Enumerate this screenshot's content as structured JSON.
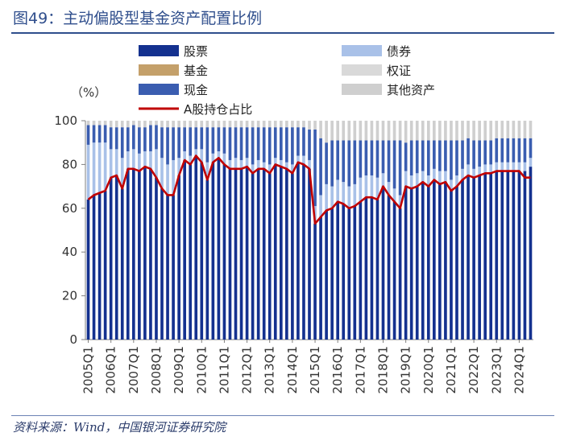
{
  "figure": {
    "title": "图49：主动偏股型基金资产配置比例",
    "source": "资料来源：Wind，中国银河证券研究院"
  },
  "chart_data": {
    "type": "bar",
    "stacked": true,
    "title": "主动偏股型基金资产配置比例",
    "ylabel": "（%）",
    "ylim": [
      0,
      100
    ],
    "yticks": [
      0,
      20,
      40,
      60,
      80,
      100
    ],
    "categories": [
      "2005Q1",
      "2005Q2",
      "2005Q3",
      "2005Q4",
      "2006Q1",
      "2006Q2",
      "2006Q3",
      "2006Q4",
      "2007Q1",
      "2007Q2",
      "2007Q3",
      "2007Q4",
      "2008Q1",
      "2008Q2",
      "2008Q3",
      "2008Q4",
      "2009Q1",
      "2009Q2",
      "2009Q3",
      "2009Q4",
      "2010Q1",
      "2010Q2",
      "2010Q3",
      "2010Q4",
      "2011Q1",
      "2011Q2",
      "2011Q3",
      "2011Q4",
      "2012Q1",
      "2012Q2",
      "2012Q3",
      "2012Q4",
      "2013Q1",
      "2013Q2",
      "2013Q3",
      "2013Q4",
      "2014Q1",
      "2014Q2",
      "2014Q3",
      "2014Q4",
      "2015Q1",
      "2015Q2",
      "2015Q3",
      "2015Q4",
      "2016Q1",
      "2016Q2",
      "2016Q3",
      "2016Q4",
      "2017Q1",
      "2017Q2",
      "2017Q3",
      "2017Q4",
      "2018Q1",
      "2018Q2",
      "2018Q3",
      "2018Q4",
      "2019Q1",
      "2019Q2",
      "2019Q3",
      "2019Q4",
      "2020Q1",
      "2020Q2",
      "2020Q3",
      "2020Q4",
      "2021Q1",
      "2021Q2",
      "2021Q3",
      "2021Q4",
      "2022Q1",
      "2022Q2",
      "2022Q3",
      "2022Q4",
      "2023Q1",
      "2023Q2",
      "2023Q3",
      "2023Q4",
      "2024Q1",
      "2024Q2",
      "2024Q3"
    ],
    "xtick_labels": [
      "2005Q1",
      "2006Q1",
      "2007Q1",
      "2008Q1",
      "2009Q1",
      "2010Q1",
      "2011Q1",
      "2012Q1",
      "2013Q1",
      "2014Q1",
      "2015Q1",
      "2016Q1",
      "2017Q1",
      "2018Q1",
      "2019Q1",
      "2020Q1",
      "2021Q1",
      "2022Q1",
      "2023Q1",
      "2024Q1"
    ],
    "series": [
      {
        "name": "股票",
        "kind": "bar",
        "color": "#14318f",
        "values": [
          64,
          66,
          67,
          68,
          74,
          75,
          69,
          78,
          78,
          77,
          79,
          78,
          74,
          69,
          66,
          66,
          75,
          82,
          80,
          84,
          81,
          73,
          81,
          83,
          80,
          78,
          78,
          78,
          79,
          76,
          78,
          78,
          76,
          80,
          79,
          78,
          76,
          81,
          80,
          78,
          53,
          56,
          59,
          60,
          63,
          62,
          60,
          61,
          63,
          65,
          65,
          64,
          70,
          66,
          63,
          60,
          70,
          69,
          70,
          72,
          70,
          73,
          71,
          72,
          68,
          70,
          73,
          75,
          74,
          75,
          76,
          76,
          77,
          77,
          77,
          77,
          77,
          77,
          79
        ]
      },
      {
        "name": "债券",
        "kind": "bar",
        "color": "#a9c1e8",
        "values": [
          25,
          24,
          23,
          22,
          13,
          12,
          14,
          8,
          9,
          8,
          7,
          8,
          13,
          14,
          14,
          16,
          8,
          4,
          4,
          3,
          6,
          8,
          4,
          3,
          5,
          4,
          5,
          4,
          4,
          4,
          4,
          3,
          4,
          3,
          3,
          3,
          4,
          3,
          4,
          4,
          8,
          10,
          12,
          10,
          10,
          10,
          10,
          10,
          11,
          10,
          10,
          10,
          6,
          6,
          6,
          6,
          7,
          6,
          6,
          5,
          5,
          5,
          6,
          5,
          5,
          5,
          5,
          5,
          4,
          4,
          4,
          4,
          4,
          4,
          4,
          4,
          4,
          4,
          4
        ]
      },
      {
        "name": "基金",
        "kind": "bar",
        "color": "#c4a06a",
        "values": [
          0,
          0,
          0,
          0,
          0,
          0,
          0,
          0,
          0,
          0,
          0,
          0,
          0,
          0,
          0,
          0,
          0,
          0,
          0,
          0,
          0,
          0,
          0,
          0,
          0,
          0,
          0,
          0,
          0,
          0,
          0,
          0,
          0,
          0,
          0,
          0,
          0,
          0,
          0,
          0,
          0,
          0,
          0,
          0,
          0,
          0,
          0,
          0,
          0,
          0,
          0,
          0,
          0,
          0,
          0,
          0,
          0,
          0,
          0,
          0,
          0,
          0,
          0,
          0,
          0,
          0,
          0,
          0,
          0,
          0,
          0,
          0,
          0,
          0,
          0,
          0,
          0,
          0,
          0
        ]
      },
      {
        "name": "权证",
        "kind": "bar",
        "color": "#d9d9d9",
        "values": [
          0,
          0,
          0,
          0,
          0,
          0,
          0,
          0,
          0,
          0,
          0,
          0,
          0,
          0,
          0,
          0,
          0,
          0,
          0,
          0,
          0,
          0,
          0,
          0,
          0,
          0,
          0,
          0,
          0,
          0,
          0,
          0,
          0,
          0,
          0,
          0,
          0,
          0,
          0,
          0,
          0,
          0,
          0,
          0,
          0,
          0,
          0,
          0,
          0,
          0,
          0,
          0,
          0,
          0,
          0,
          0,
          0,
          0,
          0,
          0,
          0,
          0,
          0,
          0,
          0,
          0,
          0,
          0,
          0,
          0,
          0,
          0,
          0,
          0,
          0,
          0,
          0,
          0,
          0
        ]
      },
      {
        "name": "现金",
        "kind": "bar",
        "color": "#3a5db0",
        "values": [
          9,
          8,
          8,
          8,
          10,
          10,
          14,
          11,
          11,
          12,
          11,
          12,
          11,
          14,
          17,
          15,
          14,
          11,
          13,
          10,
          10,
          16,
          12,
          11,
          12,
          15,
          14,
          15,
          14,
          17,
          15,
          16,
          17,
          14,
          15,
          16,
          17,
          13,
          13,
          14,
          35,
          26,
          19,
          21,
          18,
          19,
          21,
          20,
          17,
          16,
          16,
          17,
          15,
          19,
          22,
          25,
          13,
          16,
          15,
          14,
          16,
          13,
          14,
          14,
          18,
          16,
          13,
          12,
          13,
          12,
          11,
          11,
          11,
          11,
          11,
          11,
          11,
          11,
          9
        ]
      },
      {
        "name": "其他资产",
        "kind": "bar",
        "color": "#cfcfcf",
        "values": [
          2,
          2,
          2,
          2,
          3,
          3,
          3,
          3,
          2,
          3,
          3,
          2,
          2,
          3,
          3,
          3,
          3,
          3,
          3,
          3,
          3,
          3,
          3,
          3,
          3,
          3,
          3,
          3,
          3,
          3,
          3,
          3,
          3,
          3,
          3,
          3,
          3,
          3,
          3,
          4,
          4,
          8,
          10,
          9,
          9,
          9,
          9,
          9,
          9,
          9,
          9,
          9,
          9,
          9,
          9,
          9,
          10,
          9,
          9,
          9,
          9,
          9,
          9,
          9,
          9,
          9,
          9,
          8,
          9,
          9,
          9,
          9,
          8,
          8,
          8,
          8,
          8,
          8,
          8
        ]
      },
      {
        "name": "A股持仓占比",
        "kind": "line",
        "color": "#c00000",
        "values": [
          64,
          66,
          67,
          68,
          74,
          75,
          69,
          78,
          78,
          77,
          79,
          78,
          74,
          69,
          66,
          66,
          75,
          82,
          80,
          84,
          81,
          73,
          81,
          83,
          80,
          78,
          78,
          78,
          79,
          76,
          78,
          78,
          76,
          80,
          79,
          78,
          76,
          81,
          80,
          78,
          53,
          56,
          59,
          60,
          63,
          62,
          60,
          61,
          63,
          65,
          65,
          64,
          70,
          66,
          63,
          60,
          70,
          69,
          70,
          72,
          70,
          73,
          71,
          72,
          68,
          70,
          73,
          75,
          74,
          75,
          76,
          76,
          77,
          77,
          77,
          77,
          77,
          74,
          74
        ]
      }
    ],
    "legend": [
      "股票",
      "债券",
      "基金",
      "权证",
      "现金",
      "其他资产",
      "A股持仓占比"
    ]
  }
}
